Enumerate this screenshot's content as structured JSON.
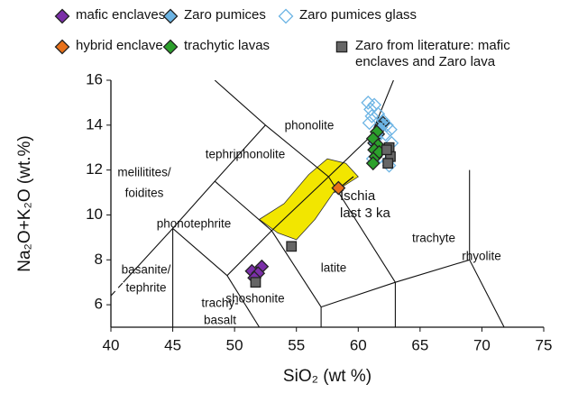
{
  "chart_data": {
    "type": "scatter",
    "x_label": "SiO₂ (wt %)",
    "y_label": "Na₂O+K₂O (wt.%)",
    "xlim": [
      40,
      75
    ],
    "xticks": [
      40,
      45,
      50,
      55,
      60,
      65,
      70,
      75
    ],
    "ylim": [
      5,
      16
    ],
    "yticks": [
      6,
      8,
      10,
      12,
      14,
      16
    ],
    "series": [
      {
        "name": "mafic enclaves",
        "color": "#7b2fa8",
        "edgecolor": "#222222",
        "marker": "diamond",
        "x": [
          51.4,
          52.2,
          51.9,
          51.6
        ],
        "y": [
          7.5,
          7.7,
          7.4,
          7.2
        ]
      },
      {
        "name": "Zaro pumices",
        "color": "#6cb4e4",
        "edgecolor": "#222222",
        "marker": "diamond",
        "x": [
          62.0,
          61.6,
          61.3,
          61.8,
          61.5
        ],
        "y": [
          14.1,
          13.6,
          13.2,
          13.9,
          12.9
        ]
      },
      {
        "name": "Zaro pumices glass",
        "color": "none",
        "edgecolor": "#6cb4e4",
        "marker": "diamond",
        "x": [
          60.8,
          61.0,
          61.3,
          61.1,
          61.6,
          62.0,
          62.3,
          62.6,
          60.9,
          61.4,
          62.2,
          62.7,
          61.8,
          62.4,
          61.2,
          62.5
        ],
        "y": [
          15.0,
          14.7,
          14.9,
          14.4,
          14.5,
          14.2,
          14.0,
          13.8,
          14.1,
          13.4,
          13.6,
          13.2,
          12.6,
          12.4,
          12.5,
          12.2
        ]
      },
      {
        "name": "hybrid enclave",
        "color": "#e8711a",
        "edgecolor": "#222222",
        "marker": "diamond",
        "x": [
          58.4
        ],
        "y": [
          11.2
        ]
      },
      {
        "name": "trachytic lavas",
        "color": "#2ca02c",
        "edgecolor": "#222222",
        "marker": "diamond",
        "x": [
          61.5,
          61.2,
          61.6,
          61.3,
          61.4,
          61.7,
          61.2
        ],
        "y": [
          13.7,
          13.4,
          13.1,
          12.9,
          12.6,
          12.8,
          12.3
        ]
      },
      {
        "name": "Zaro from literature: mafic enclaves and Zaro lava",
        "color": "#666666",
        "edgecolor": "#222222",
        "marker": "square",
        "x": [
          54.6,
          51.7,
          62.5,
          62.6,
          62.4,
          62.3
        ],
        "y": [
          8.6,
          7.0,
          13.0,
          12.6,
          12.3,
          12.9
        ]
      }
    ],
    "field_labels": [
      "phonolite",
      "tephriphonolite",
      "melilitites/",
      "foidites",
      "phonotephrite",
      "basanite/",
      "tephrite",
      "trachyte",
      "rhyolite",
      "latite",
      "shoshonite",
      "trachy-",
      "basalt"
    ],
    "annotation": [
      "Ischia",
      "last 3 ka"
    ]
  }
}
